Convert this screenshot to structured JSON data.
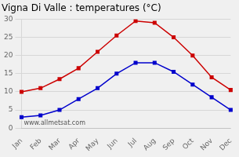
{
  "chart_data": {
    "type": "line",
    "title": "Vigna Di Valle : temperatures (°C)",
    "categories": [
      "Jan",
      "Feb",
      "Mar",
      "Apr",
      "May",
      "Jun",
      "Jul",
      "Aug",
      "Sep",
      "Oct",
      "Nov",
      "Dec"
    ],
    "series": [
      {
        "color": "#cc0000",
        "marker": "square",
        "values": [
          10,
          11,
          13.5,
          16.5,
          21,
          25.5,
          29.5,
          29,
          25,
          20,
          14,
          10.5
        ]
      },
      {
        "color": "#0000cc",
        "marker": "square",
        "values": [
          3,
          3.5,
          5,
          8,
          11,
          15,
          18,
          18,
          15.5,
          12,
          8.5,
          5
        ]
      }
    ],
    "ylim": [
      0,
      30
    ],
    "yticks": [
      0,
      5,
      10,
      15,
      20,
      25,
      30
    ],
    "grid": "y",
    "annotations": [
      "www.allmetsat.com"
    ]
  }
}
